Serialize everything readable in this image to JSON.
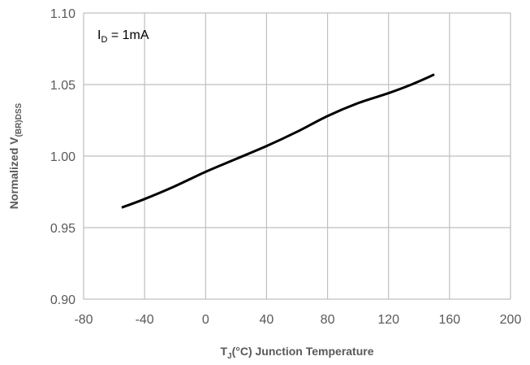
{
  "chart_data": {
    "type": "line",
    "title": "",
    "xlabel": {
      "main": "T",
      "sub": "J",
      "rest": "(°C) Junction Temperature"
    },
    "ylabel": {
      "main": "Normalized V",
      "sub": "(BR)DSS"
    },
    "xlim": [
      -80,
      200
    ],
    "ylim": [
      0.9,
      1.1
    ],
    "xticks": [
      -80,
      -40,
      0,
      40,
      80,
      120,
      160,
      200
    ],
    "yticks": [
      0.9,
      0.95,
      1.0,
      1.05,
      1.1
    ],
    "ytick_labels": [
      "0.90",
      "0.95",
      "1.00",
      "1.05",
      "1.10"
    ],
    "grid": true,
    "annotation": {
      "main": "I",
      "sub": "D",
      "rest": " = 1mA"
    },
    "series": [
      {
        "name": "VBRDSS",
        "color": "#000000",
        "x": [
          -55,
          -40,
          -20,
          0,
          20,
          40,
          60,
          80,
          100,
          120,
          135,
          150
        ],
        "y": [
          0.964,
          0.97,
          0.979,
          0.989,
          0.998,
          1.007,
          1.017,
          1.028,
          1.037,
          1.044,
          1.05,
          1.057
        ]
      }
    ]
  }
}
